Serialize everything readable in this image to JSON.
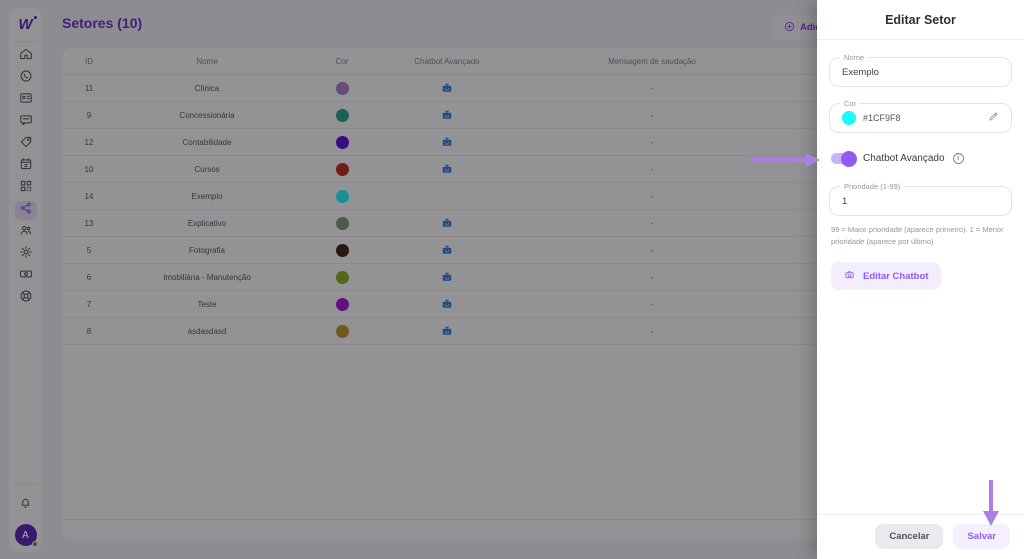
{
  "app": {
    "logo_text": "W"
  },
  "sidebar": {
    "icons": [
      "home",
      "whatsapp",
      "contacts",
      "chat",
      "tag",
      "calendar",
      "qr-code",
      "share-network",
      "users",
      "settings",
      "billing",
      "help"
    ],
    "active_item": "share-network",
    "avatar_initial": "A"
  },
  "header": {
    "title": "Setores (10)",
    "add_button_label": "Adicionar"
  },
  "table": {
    "columns": [
      "ID",
      "Nome",
      "Cor",
      "Chatbot Avançado",
      "Mensagem de saudação"
    ],
    "rows": [
      {
        "id": "11",
        "nome": "Clínica",
        "cor": "#AF7EC4",
        "chatbot": true,
        "mensagem": "-"
      },
      {
        "id": "9",
        "nome": "Concessionária",
        "cor": "#2BA08A",
        "chatbot": true,
        "mensagem": "-"
      },
      {
        "id": "12",
        "nome": "Contabilidade",
        "cor": "#5B10D8",
        "chatbot": true,
        "mensagem": "-"
      },
      {
        "id": "10",
        "nome": "Cursos",
        "cor": "#C1271B",
        "chatbot": true,
        "mensagem": "-"
      },
      {
        "id": "14",
        "nome": "Exemplo",
        "cor": "#1CF9F8",
        "chatbot": false,
        "mensagem": "-"
      },
      {
        "id": "13",
        "nome": "Explicativo",
        "cor": "#7F9878",
        "chatbot": true,
        "mensagem": "-"
      },
      {
        "id": "5",
        "nome": "Fotografia",
        "cor": "#3E1E10",
        "chatbot": true,
        "mensagem": "-"
      },
      {
        "id": "6",
        "nome": "Imobiliária - Manutenção",
        "cor": "#8CB122",
        "chatbot": true,
        "mensagem": "-"
      },
      {
        "id": "7",
        "nome": "Teste",
        "cor": "#A812D6",
        "chatbot": true,
        "mensagem": "-"
      },
      {
        "id": "8",
        "nome": "asdasdasd",
        "cor": "#BA9A23",
        "chatbot": true,
        "mensagem": "-"
      }
    ]
  },
  "panel": {
    "title": "Editar Setor",
    "nome_field": {
      "label": "Nome",
      "value": "Exemplo"
    },
    "cor_field": {
      "label": "Cor",
      "value": "#1CF9F8",
      "swatch_color": "#1CF9F8"
    },
    "chatbot_toggle": {
      "label": "Chatbot Avançado",
      "state": "on"
    },
    "prioridade_field": {
      "label": "Prioridade (1-99)",
      "value": "1",
      "helper": "99 = Maior prioridade (aparece primeiro). 1 = Menor prioridade (aparece por último)"
    },
    "edit_chatbot_button_label": "Editar Chatbot",
    "cancel_button_label": "Cancelar",
    "save_button_label": "Salvar"
  },
  "colors": {
    "accent_purple": "#8B5CF6",
    "title_purple": "#6D28D9",
    "robot_blue": "#2C7BD4",
    "annotation_arrow": "#AC7FE4",
    "avatar_bg": "#5B21B6",
    "online_green": "#2FB344"
  }
}
